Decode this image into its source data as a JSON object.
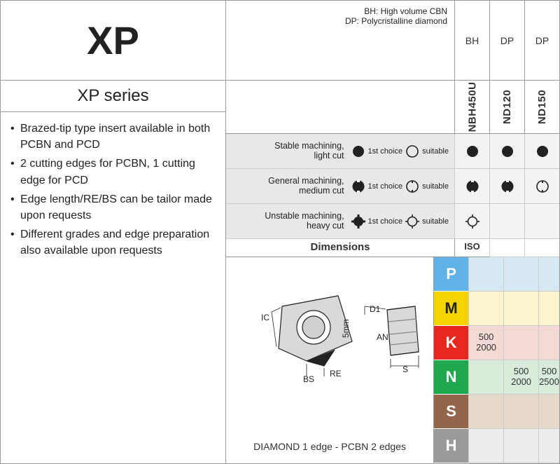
{
  "title": "XP",
  "series": "XP series",
  "bullets": [
    "Brazed-tip type insert available in both PCBN and PCD",
    "2 cutting edges for PCBN, 1 cutting edge for PCD",
    "Edge length/RE/BS can be tailor made upon requests",
    "Different grades and edge preparation also available upon requests"
  ],
  "note_lines": [
    "BH: High volume CBN",
    "DP: Polycristalline diamond"
  ],
  "grade_headers": [
    "BH",
    "DP",
    "DP"
  ],
  "grade_codes": [
    "NBH450U",
    "ND120",
    "ND150"
  ],
  "legend_rows": [
    {
      "label": "Stable machining,",
      "sub": "light cut",
      "key1": "1st choice",
      "key2": "suitable",
      "icon": "circle-solid",
      "icon2": "circle-outline"
    },
    {
      "label": "General machining,",
      "sub": "medium cut",
      "key1": "1st choice",
      "key2": "suitable",
      "icon": "hex-solid",
      "icon2": "hex-outline"
    },
    {
      "label": "Unstable machining,",
      "sub": "heavy cut",
      "key1": "1st choice",
      "key2": "suitable",
      "icon": "gear-solid",
      "icon2": "gear-outline"
    }
  ],
  "legend_cells": [
    [
      "circle-solid",
      "circle-solid",
      "circle-solid"
    ],
    [
      "hex-solid",
      "hex-solid",
      "hex-outline"
    ],
    [
      "gear-outline",
      "",
      ""
    ]
  ],
  "dim_header": "Dimensions",
  "iso_header": "ISO",
  "diagram_labels": {
    "IC": "IC",
    "BS": "BS",
    "RE": "RE",
    "D1": "D1",
    "AN": "AN",
    "S": "S",
    "five": "5mm"
  },
  "diagram_caption": "DIAMOND 1 edge - PCBN 2 edges",
  "iso_rows": [
    {
      "code": "P",
      "bg": "#5fb3e6",
      "cells_bg": "#d6e9f3",
      "vals": [
        "",
        "",
        ""
      ]
    },
    {
      "code": "M",
      "bg": "#f5d500",
      "cells_bg": "#fbf4cf",
      "vals": [
        "",
        "",
        ""
      ]
    },
    {
      "code": "K",
      "bg": "#e8281f",
      "cells_bg": "#f5d9d4",
      "vals": [
        "500\n2000",
        "",
        ""
      ]
    },
    {
      "code": "N",
      "bg": "#1fa84e",
      "cells_bg": "#d9ecd9",
      "vals": [
        "",
        "500\n2000",
        "500\n2500"
      ]
    },
    {
      "code": "S",
      "bg": "#93654a",
      "cells_bg": "#e6d9cc",
      "vals": [
        "",
        "",
        ""
      ]
    },
    {
      "code": "H",
      "bg": "#9a9a9a",
      "cells_bg": "#ececec",
      "vals": [
        "",
        "",
        ""
      ]
    }
  ],
  "icons": {
    "circle-solid": "●",
    "circle-outline": "○",
    "hex-solid": "hex-s",
    "hex-outline": "hex-o",
    "gear-solid": "gear-s",
    "gear-outline": "gear-o"
  },
  "colors": {
    "border": "#999",
    "legend_bg": "#e8e8e8"
  }
}
